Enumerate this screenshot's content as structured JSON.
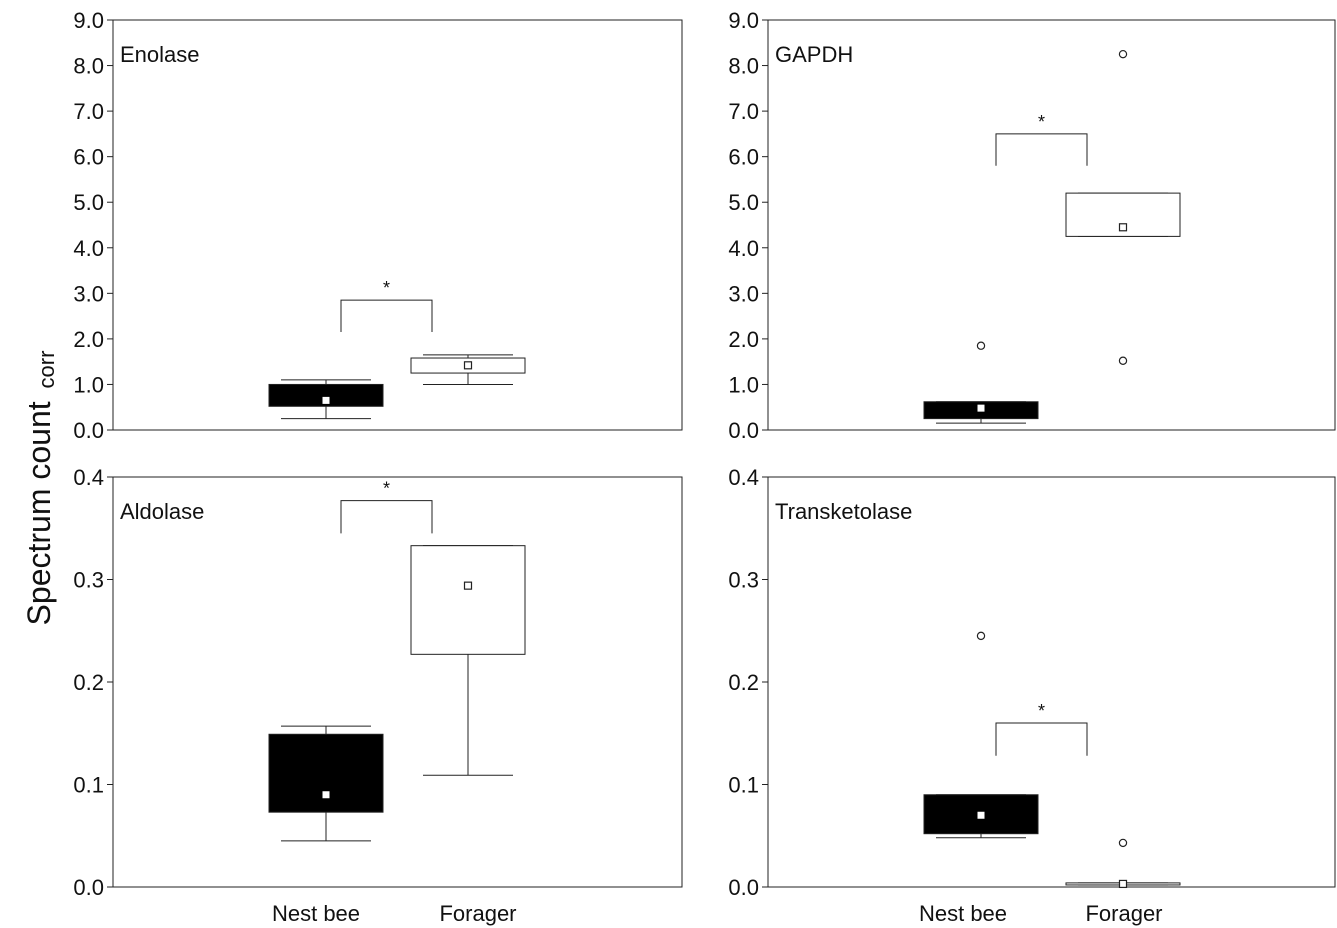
{
  "y_label": {
    "main": "Spectrum count",
    "sub": "corr"
  },
  "x_categories": [
    "Nest bee",
    "Forager"
  ],
  "chart_data": [
    {
      "type": "box",
      "title": "Enolase",
      "ylim": [
        0,
        9
      ],
      "yticks": [
        "0.0",
        "1.0",
        "2.0",
        "3.0",
        "4.0",
        "5.0",
        "6.0",
        "7.0",
        "8.0",
        "9.0"
      ],
      "categories": [
        "Nest bee",
        "Forager"
      ],
      "boxes": [
        {
          "name": "Nest bee",
          "whisker_low": 0.25,
          "q1": 0.52,
          "mean": 0.65,
          "q3": 1.0,
          "whisker_high": 1.1,
          "outliers": [],
          "fill": "#000000"
        },
        {
          "name": "Forager",
          "whisker_low": 1.0,
          "q1": 1.25,
          "mean": 1.42,
          "q3": 1.58,
          "whisker_high": 1.65,
          "outliers": [],
          "fill": "#ffffff"
        }
      ],
      "significance": {
        "label": "*",
        "y_top": 2.85,
        "y_drop": 2.15
      }
    },
    {
      "type": "box",
      "title": "GAPDH",
      "ylim": [
        0,
        9
      ],
      "yticks": [
        "0.0",
        "1.0",
        "2.0",
        "3.0",
        "4.0",
        "5.0",
        "6.0",
        "7.0",
        "8.0",
        "9.0"
      ],
      "categories": [
        "Nest bee",
        "Forager"
      ],
      "boxes": [
        {
          "name": "Nest bee",
          "whisker_low": 0.15,
          "q1": 0.25,
          "mean": 0.48,
          "q3": 0.62,
          "whisker_high": 0.62,
          "outliers": [
            1.85
          ],
          "fill": "#000000"
        },
        {
          "name": "Forager",
          "whisker_low": 4.25,
          "q1": 4.25,
          "mean": 4.45,
          "q3": 5.2,
          "whisker_high": 5.2,
          "outliers": [
            8.25,
            1.52
          ],
          "fill": "#ffffff"
        }
      ],
      "significance": {
        "label": "*",
        "y_top": 6.5,
        "y_drop": 5.8
      }
    },
    {
      "type": "box",
      "title": "Aldolase",
      "ylim": [
        0,
        0.4
      ],
      "yticks": [
        "0.0",
        "0.1",
        "0.2",
        "0.3",
        "0.4"
      ],
      "categories": [
        "Nest bee",
        "Forager"
      ],
      "boxes": [
        {
          "name": "Nest bee",
          "whisker_low": 0.045,
          "q1": 0.073,
          "mean": 0.09,
          "q3": 0.149,
          "whisker_high": 0.157,
          "outliers": [],
          "fill": "#000000"
        },
        {
          "name": "Forager",
          "whisker_low": 0.109,
          "q1": 0.227,
          "mean": 0.294,
          "q3": 0.333,
          "whisker_high": 0.333,
          "outliers": [],
          "fill": "#ffffff"
        }
      ],
      "significance": {
        "label": "*",
        "y_top": 0.377,
        "y_drop": 0.345
      }
    },
    {
      "type": "box",
      "title": "Transketolase",
      "ylim": [
        0,
        0.4
      ],
      "yticks": [
        "0.0",
        "0.1",
        "0.2",
        "0.3",
        "0.4"
      ],
      "categories": [
        "Nest bee",
        "Forager"
      ],
      "boxes": [
        {
          "name": "Nest bee",
          "whisker_low": 0.048,
          "q1": 0.052,
          "mean": 0.07,
          "q3": 0.09,
          "whisker_high": 0.09,
          "outliers": [
            0.245
          ],
          "fill": "#000000"
        },
        {
          "name": "Forager",
          "whisker_low": 0.002,
          "q1": 0.002,
          "mean": 0.003,
          "q3": 0.004,
          "whisker_high": 0.004,
          "outliers": [
            0.043
          ],
          "fill": "#ffffff"
        }
      ],
      "significance": {
        "label": "*",
        "y_top": 0.16,
        "y_drop": 0.128
      }
    }
  ]
}
